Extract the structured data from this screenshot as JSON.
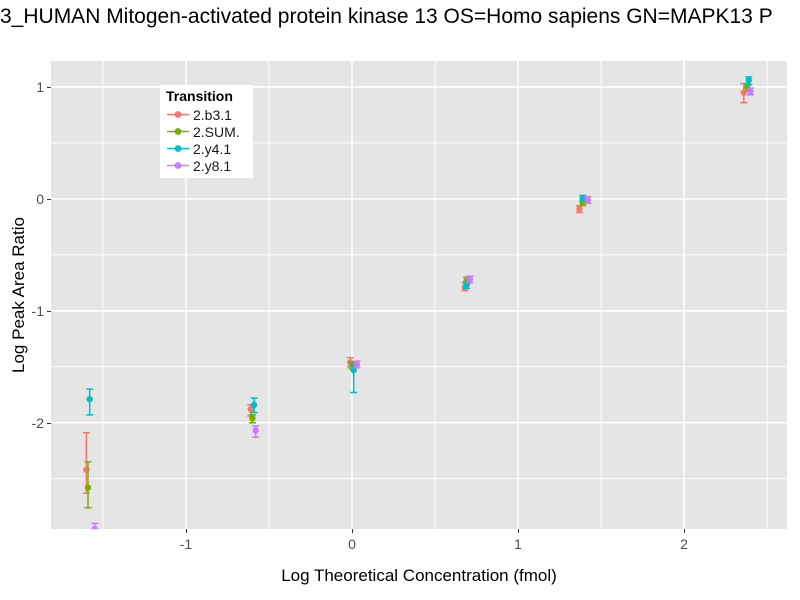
{
  "title": "3_HUMAN Mitogen-activated protein kinase 13 OS=Homo sapiens GN=MAPK13 P",
  "chart_data": {
    "type": "scatter",
    "title": "3_HUMAN Mitogen-activated protein kinase 13 OS=Homo sapiens GN=MAPK13 P",
    "xlabel": "Log Theoretical Concentration (fmol)",
    "ylabel": "Log Peak Area Ratio",
    "xlim": [
      -1.813,
      2.62
    ],
    "ylim": [
      -2.95,
      1.232
    ],
    "grid": "major-and-minor-white-on-gray",
    "x_ticks": [
      {
        "value": -1,
        "label": "-1"
      },
      {
        "value": 0,
        "label": "0"
      },
      {
        "value": 1,
        "label": "1"
      },
      {
        "value": 2,
        "label": "2"
      }
    ],
    "y_ticks": [
      {
        "value": 1,
        "label": "1"
      },
      {
        "value": 0,
        "label": "0"
      },
      {
        "value": -1,
        "label": "-1"
      },
      {
        "value": -2,
        "label": "-2"
      }
    ],
    "x_minor_ticks": [
      -1.5,
      -0.5,
      0.5,
      1.5,
      2.5
    ],
    "y_minor_ticks": [
      -2.5,
      -1.5,
      -0.5,
      0.5
    ],
    "legend": {
      "title": "Transition",
      "position": "top-left-inside"
    },
    "series": [
      {
        "name": "2.b3.1",
        "color": "#F8766D",
        "points": [
          {
            "x": -1.6,
            "y": -2.42,
            "ymin": -2.63,
            "ymax": -2.09
          },
          {
            "x": -0.61,
            "y": -1.88,
            "ymin": -1.94,
            "ymax": -1.84
          },
          {
            "x": -0.01,
            "y": -1.46,
            "ymin": -1.5,
            "ymax": -1.42
          },
          {
            "x": 0.68,
            "y": -0.79,
            "ymin": -0.82,
            "ymax": -0.75
          },
          {
            "x": 1.37,
            "y": -0.09,
            "ymin": -0.12,
            "ymax": -0.06
          },
          {
            "x": 2.36,
            "y": 0.95,
            "ymin": 0.86,
            "ymax": 1.03
          }
        ]
      },
      {
        "name": "2.SUM.",
        "color": "#7CAE00",
        "points": [
          {
            "x": -1.59,
            "y": -2.58,
            "ymin": -2.76,
            "ymax": -2.35
          },
          {
            "x": -0.6,
            "y": -1.96,
            "ymin": -2.0,
            "ymax": -1.93
          },
          {
            "x": 0.0,
            "y": -1.49,
            "ymin": -1.52,
            "ymax": -1.46
          },
          {
            "x": 0.69,
            "y": -0.73,
            "ymin": -0.76,
            "ymax": -0.7
          },
          {
            "x": 1.39,
            "y": -0.04,
            "ymin": -0.06,
            "ymax": -0.01
          },
          {
            "x": 2.38,
            "y": 1.0,
            "ymin": 0.96,
            "ymax": 1.03
          }
        ]
      },
      {
        "name": "2.y4.1",
        "color": "#00BFC4",
        "points": [
          {
            "x": -1.58,
            "y": -1.79,
            "ymin": -1.93,
            "ymax": -1.7
          },
          {
            "x": -0.59,
            "y": -1.84,
            "ymin": -1.91,
            "ymax": -1.78
          },
          {
            "x": 0.01,
            "y": -1.53,
            "ymin": -1.73,
            "ymax": -1.48
          },
          {
            "x": 0.69,
            "y": -0.77,
            "ymin": -0.8,
            "ymax": -0.74
          },
          {
            "x": 1.39,
            "y": 0.01,
            "ymin": -0.02,
            "ymax": 0.03
          },
          {
            "x": 2.39,
            "y": 1.06,
            "ymin": 1.02,
            "ymax": 1.09
          }
        ]
      },
      {
        "name": "2.y8.1",
        "color": "#C77CFF",
        "points": [
          {
            "x": -1.55,
            "y": -2.95,
            "ymin": -2.95,
            "ymax": -2.9
          },
          {
            "x": -0.58,
            "y": -2.07,
            "ymin": -2.13,
            "ymax": -2.03
          },
          {
            "x": 0.03,
            "y": -1.48,
            "ymin": -1.51,
            "ymax": -1.45
          },
          {
            "x": 0.71,
            "y": -0.72,
            "ymin": -0.75,
            "ymax": -0.69
          },
          {
            "x": 1.42,
            "y": -0.01,
            "ymin": -0.04,
            "ymax": 0.02
          },
          {
            "x": 2.4,
            "y": 0.96,
            "ymin": 0.93,
            "ymax": 0.99
          }
        ]
      }
    ]
  },
  "style": {
    "panel_background": "#E5E5E5",
    "gridline_color": "#FFFFFF",
    "tick_mark_color": "#333333",
    "tick_label_color": "#4D4D4D",
    "text_color": "#000000",
    "legend_background": "#FFFFFF"
  }
}
